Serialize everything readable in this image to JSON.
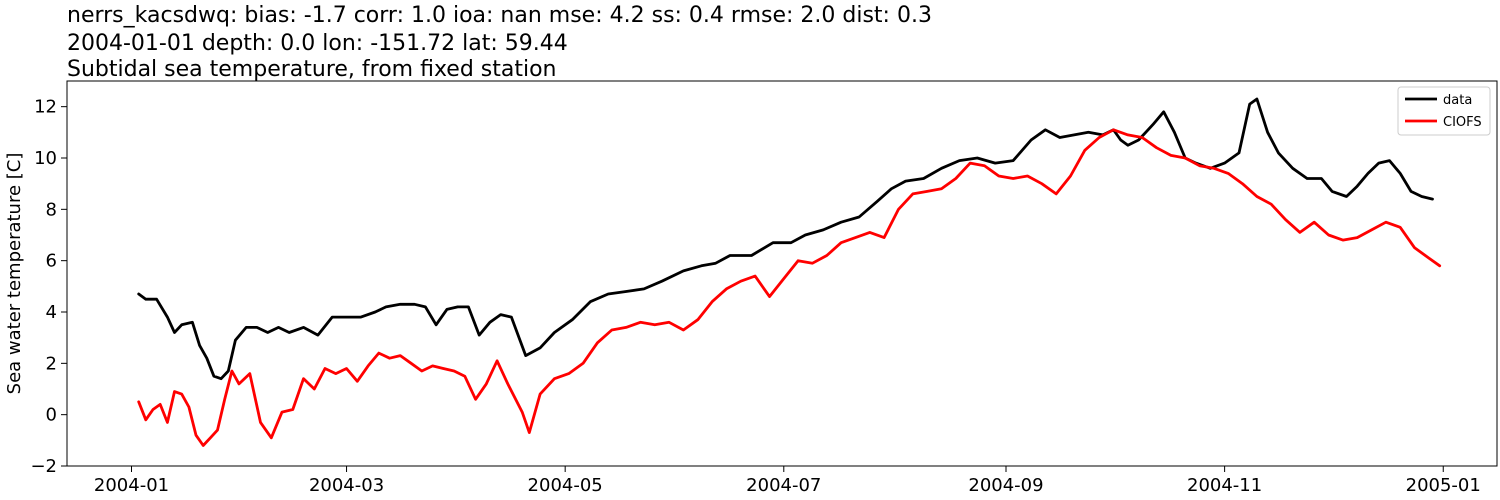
{
  "chart_data": {
    "type": "line",
    "title_lines": [
      "nerrs_kacsdwq: bias: -1.7  corr: 1.0  ioa: nan  mse: 4.2  ss: 0.4  rmse: 2.0  dist: 0.3",
      "2004-01-01 depth: 0.0 lon: -151.72 lat: 59.44",
      "Subtidal sea temperature, from fixed station"
    ],
    "xlabel": "",
    "ylabel": "Sea water temperature [C]",
    "xlim": [
      "2003-12-14",
      "2005-01-16"
    ],
    "ylim": [
      -2,
      13
    ],
    "x_ticks": [
      "2004-01",
      "2004-03",
      "2004-05",
      "2004-07",
      "2004-09",
      "2004-11",
      "2005-01"
    ],
    "y_ticks": [
      -2,
      0,
      2,
      4,
      6,
      8,
      10,
      12
    ],
    "grid": false,
    "legend_position": "top-right",
    "series": [
      {
        "name": "data",
        "color": "#000000",
        "points": [
          [
            "2004-01-03",
            4.7
          ],
          [
            "2004-01-05",
            4.5
          ],
          [
            "2004-01-08",
            4.5
          ],
          [
            "2004-01-11",
            3.8
          ],
          [
            "2004-01-13",
            3.2
          ],
          [
            "2004-01-15",
            3.5
          ],
          [
            "2004-01-18",
            3.6
          ],
          [
            "2004-01-20",
            2.7
          ],
          [
            "2004-01-22",
            2.2
          ],
          [
            "2004-01-24",
            1.5
          ],
          [
            "2004-01-26",
            1.4
          ],
          [
            "2004-01-28",
            1.7
          ],
          [
            "2004-01-30",
            2.9
          ],
          [
            "2004-02-02",
            3.4
          ],
          [
            "2004-02-05",
            3.4
          ],
          [
            "2004-02-08",
            3.2
          ],
          [
            "2004-02-11",
            3.4
          ],
          [
            "2004-02-14",
            3.2
          ],
          [
            "2004-02-18",
            3.4
          ],
          [
            "2004-02-22",
            3.1
          ],
          [
            "2004-02-26",
            3.8
          ],
          [
            "2004-03-01",
            3.8
          ],
          [
            "2004-03-05",
            3.8
          ],
          [
            "2004-03-09",
            4.0
          ],
          [
            "2004-03-12",
            4.2
          ],
          [
            "2004-03-16",
            4.3
          ],
          [
            "2004-03-20",
            4.3
          ],
          [
            "2004-03-23",
            4.2
          ],
          [
            "2004-03-26",
            3.5
          ],
          [
            "2004-03-29",
            4.1
          ],
          [
            "2004-04-01",
            4.2
          ],
          [
            "2004-04-04",
            4.2
          ],
          [
            "2004-04-07",
            3.1
          ],
          [
            "2004-04-10",
            3.6
          ],
          [
            "2004-04-13",
            3.9
          ],
          [
            "2004-04-16",
            3.8
          ],
          [
            "2004-04-20",
            2.3
          ],
          [
            "2004-04-24",
            2.6
          ],
          [
            "2004-04-28",
            3.2
          ],
          [
            "2004-05-03",
            3.7
          ],
          [
            "2004-05-08",
            4.4
          ],
          [
            "2004-05-13",
            4.7
          ],
          [
            "2004-05-18",
            4.8
          ],
          [
            "2004-05-23",
            4.9
          ],
          [
            "2004-05-28",
            5.2
          ],
          [
            "2004-06-03",
            5.6
          ],
          [
            "2004-06-08",
            5.8
          ],
          [
            "2004-06-12",
            5.9
          ],
          [
            "2004-06-16",
            6.2
          ],
          [
            "2004-06-22",
            6.2
          ],
          [
            "2004-06-28",
            6.7
          ],
          [
            "2004-07-03",
            6.7
          ],
          [
            "2004-07-07",
            7.0
          ],
          [
            "2004-07-12",
            7.2
          ],
          [
            "2004-07-17",
            7.5
          ],
          [
            "2004-07-22",
            7.7
          ],
          [
            "2004-07-27",
            8.3
          ],
          [
            "2004-07-31",
            8.8
          ],
          [
            "2004-08-04",
            9.1
          ],
          [
            "2004-08-09",
            9.2
          ],
          [
            "2004-08-14",
            9.6
          ],
          [
            "2004-08-19",
            9.9
          ],
          [
            "2004-08-24",
            10.0
          ],
          [
            "2004-08-29",
            9.8
          ],
          [
            "2004-09-03",
            9.9
          ],
          [
            "2004-09-08",
            10.7
          ],
          [
            "2004-09-12",
            11.1
          ],
          [
            "2004-09-16",
            10.8
          ],
          [
            "2004-09-20",
            10.9
          ],
          [
            "2004-09-24",
            11.0
          ],
          [
            "2004-09-28",
            10.9
          ],
          [
            "2004-10-01",
            11.1
          ],
          [
            "2004-10-03",
            10.7
          ],
          [
            "2004-10-05",
            10.5
          ],
          [
            "2004-10-08",
            10.7
          ],
          [
            "2004-10-12",
            11.3
          ],
          [
            "2004-10-15",
            11.8
          ],
          [
            "2004-10-18",
            11.0
          ],
          [
            "2004-10-21",
            10.0
          ],
          [
            "2004-10-24",
            9.8
          ],
          [
            "2004-10-28",
            9.6
          ],
          [
            "2004-11-01",
            9.8
          ],
          [
            "2004-11-05",
            10.2
          ],
          [
            "2004-11-08",
            12.1
          ],
          [
            "2004-11-10",
            12.3
          ],
          [
            "2004-11-13",
            11.0
          ],
          [
            "2004-11-16",
            10.2
          ],
          [
            "2004-11-20",
            9.6
          ],
          [
            "2004-11-24",
            9.2
          ],
          [
            "2004-11-28",
            9.2
          ],
          [
            "2004-12-01",
            8.7
          ],
          [
            "2004-12-05",
            8.5
          ],
          [
            "2004-12-08",
            8.9
          ],
          [
            "2004-12-11",
            9.4
          ],
          [
            "2004-12-14",
            9.8
          ],
          [
            "2004-12-17",
            9.9
          ],
          [
            "2004-12-20",
            9.4
          ],
          [
            "2004-12-23",
            8.7
          ],
          [
            "2004-12-26",
            8.5
          ],
          [
            "2004-12-29",
            8.4
          ]
        ]
      },
      {
        "name": "CIOFS",
        "color": "#ff0000",
        "points": [
          [
            "2004-01-03",
            0.5
          ],
          [
            "2004-01-05",
            -0.2
          ],
          [
            "2004-01-07",
            0.2
          ],
          [
            "2004-01-09",
            0.4
          ],
          [
            "2004-01-11",
            -0.3
          ],
          [
            "2004-01-13",
            0.9
          ],
          [
            "2004-01-15",
            0.8
          ],
          [
            "2004-01-17",
            0.3
          ],
          [
            "2004-01-19",
            -0.8
          ],
          [
            "2004-01-21",
            -1.2
          ],
          [
            "2004-01-23",
            -0.9
          ],
          [
            "2004-01-25",
            -0.6
          ],
          [
            "2004-01-27",
            0.6
          ],
          [
            "2004-01-29",
            1.7
          ],
          [
            "2004-01-31",
            1.2
          ],
          [
            "2004-02-03",
            1.6
          ],
          [
            "2004-02-06",
            -0.3
          ],
          [
            "2004-02-09",
            -0.9
          ],
          [
            "2004-02-12",
            0.1
          ],
          [
            "2004-02-15",
            0.2
          ],
          [
            "2004-02-18",
            1.4
          ],
          [
            "2004-02-21",
            1.0
          ],
          [
            "2004-02-24",
            1.8
          ],
          [
            "2004-02-27",
            1.6
          ],
          [
            "2004-03-01",
            1.8
          ],
          [
            "2004-03-04",
            1.3
          ],
          [
            "2004-03-07",
            1.9
          ],
          [
            "2004-03-10",
            2.4
          ],
          [
            "2004-03-13",
            2.2
          ],
          [
            "2004-03-16",
            2.3
          ],
          [
            "2004-03-19",
            2.0
          ],
          [
            "2004-03-22",
            1.7
          ],
          [
            "2004-03-25",
            1.9
          ],
          [
            "2004-03-28",
            1.8
          ],
          [
            "2004-03-31",
            1.7
          ],
          [
            "2004-04-03",
            1.5
          ],
          [
            "2004-04-06",
            0.6
          ],
          [
            "2004-04-09",
            1.2
          ],
          [
            "2004-04-12",
            2.1
          ],
          [
            "2004-04-15",
            1.2
          ],
          [
            "2004-04-19",
            0.1
          ],
          [
            "2004-04-21",
            -0.7
          ],
          [
            "2004-04-24",
            0.8
          ],
          [
            "2004-04-28",
            1.4
          ],
          [
            "2004-05-02",
            1.6
          ],
          [
            "2004-05-06",
            2.0
          ],
          [
            "2004-05-10",
            2.8
          ],
          [
            "2004-05-14",
            3.3
          ],
          [
            "2004-05-18",
            3.4
          ],
          [
            "2004-05-22",
            3.6
          ],
          [
            "2004-05-26",
            3.5
          ],
          [
            "2004-05-30",
            3.6
          ],
          [
            "2004-06-03",
            3.3
          ],
          [
            "2004-06-07",
            3.7
          ],
          [
            "2004-06-11",
            4.4
          ],
          [
            "2004-06-15",
            4.9
          ],
          [
            "2004-06-19",
            5.2
          ],
          [
            "2004-06-23",
            5.4
          ],
          [
            "2004-06-27",
            4.6
          ],
          [
            "2004-07-01",
            5.3
          ],
          [
            "2004-07-05",
            6.0
          ],
          [
            "2004-07-09",
            5.9
          ],
          [
            "2004-07-13",
            6.2
          ],
          [
            "2004-07-17",
            6.7
          ],
          [
            "2004-07-21",
            6.9
          ],
          [
            "2004-07-25",
            7.1
          ],
          [
            "2004-07-29",
            6.9
          ],
          [
            "2004-08-02",
            8.0
          ],
          [
            "2004-08-06",
            8.6
          ],
          [
            "2004-08-10",
            8.7
          ],
          [
            "2004-08-14",
            8.8
          ],
          [
            "2004-08-18",
            9.2
          ],
          [
            "2004-08-22",
            9.8
          ],
          [
            "2004-08-26",
            9.7
          ],
          [
            "2004-08-30",
            9.3
          ],
          [
            "2004-09-03",
            9.2
          ],
          [
            "2004-09-07",
            9.3
          ],
          [
            "2004-09-11",
            9.0
          ],
          [
            "2004-09-15",
            8.6
          ],
          [
            "2004-09-19",
            9.3
          ],
          [
            "2004-09-23",
            10.3
          ],
          [
            "2004-09-27",
            10.8
          ],
          [
            "2004-10-01",
            11.1
          ],
          [
            "2004-10-05",
            10.9
          ],
          [
            "2004-10-09",
            10.8
          ],
          [
            "2004-10-13",
            10.4
          ],
          [
            "2004-10-17",
            10.1
          ],
          [
            "2004-10-21",
            10.0
          ],
          [
            "2004-10-25",
            9.7
          ],
          [
            "2004-10-29",
            9.6
          ],
          [
            "2004-11-02",
            9.4
          ],
          [
            "2004-11-06",
            9.0
          ],
          [
            "2004-11-10",
            8.5
          ],
          [
            "2004-11-14",
            8.2
          ],
          [
            "2004-11-18",
            7.6
          ],
          [
            "2004-11-22",
            7.1
          ],
          [
            "2004-11-26",
            7.5
          ],
          [
            "2004-11-30",
            7.0
          ],
          [
            "2004-12-04",
            6.8
          ],
          [
            "2004-12-08",
            6.9
          ],
          [
            "2004-12-12",
            7.2
          ],
          [
            "2004-12-16",
            7.5
          ],
          [
            "2004-12-20",
            7.3
          ],
          [
            "2004-12-24",
            6.5
          ],
          [
            "2004-12-28",
            6.1
          ],
          [
            "2004-12-31",
            5.8
          ]
        ]
      }
    ]
  }
}
